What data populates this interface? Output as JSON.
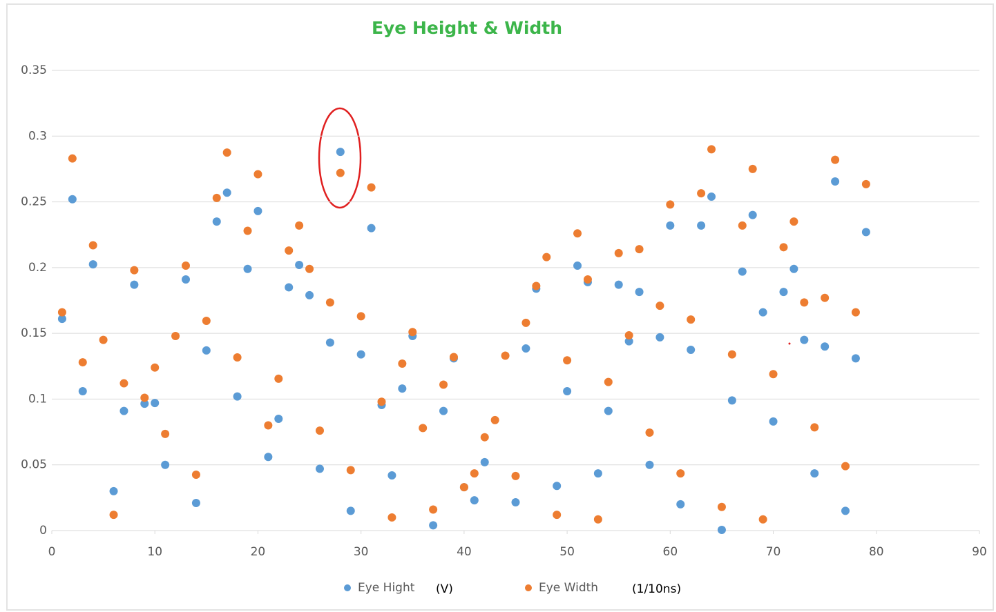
{
  "chart_data": {
    "type": "scatter",
    "title": "Eye Height & Width",
    "xlim": [
      0,
      90
    ],
    "xticks": [
      0,
      10,
      20,
      30,
      40,
      50,
      60,
      70,
      80,
      90
    ],
    "ylim": [
      0,
      0.35
    ],
    "yticks": [
      0,
      0.05,
      0.1,
      0.15,
      0.2,
      0.25,
      0.3,
      0.35
    ],
    "grid": true,
    "legend": "bottom",
    "series": [
      {
        "name": "Eye Hight",
        "unit": "(V)",
        "color": "#5b9bd5",
        "x": [
          1,
          2,
          3,
          4,
          6,
          7,
          8,
          9,
          10,
          11,
          13,
          14,
          15,
          16,
          17,
          18,
          19,
          20,
          21,
          22,
          23,
          24,
          25,
          26,
          27,
          28,
          29,
          30,
          31,
          32,
          33,
          34,
          35,
          37,
          38,
          39,
          40,
          41,
          42,
          45,
          46,
          47,
          49,
          50,
          51,
          52,
          53,
          54,
          55,
          56,
          57,
          58,
          59,
          60,
          61,
          62,
          63,
          64,
          65,
          66,
          67,
          68,
          69,
          70,
          71,
          72,
          73,
          74,
          75,
          76,
          77,
          78,
          79
        ],
        "values": [
          0.161,
          0.252,
          0.106,
          0.2025,
          0.03,
          0.091,
          0.187,
          0.0965,
          0.097,
          0.05,
          0.191,
          0.021,
          0.137,
          0.235,
          0.257,
          0.102,
          0.199,
          0.243,
          0.056,
          0.085,
          0.185,
          0.202,
          0.179,
          0.047,
          0.143,
          0.288,
          0.015,
          0.134,
          0.23,
          0.0955,
          0.042,
          0.108,
          0.148,
          0.004,
          0.091,
          0.131,
          0.033,
          0.023,
          0.052,
          0.0215,
          0.1385,
          0.184,
          0.034,
          0.106,
          0.2015,
          0.189,
          0.0435,
          0.091,
          0.187,
          0.144,
          0.1815,
          0.05,
          0.147,
          0.232,
          0.02,
          0.1375,
          0.232,
          0.254,
          0.0005,
          0.099,
          0.197,
          0.24,
          0.166,
          0.083,
          0.1815,
          0.199,
          0.145,
          0.0435,
          0.14,
          0.2655,
          0.015,
          0.131,
          0.227
        ]
      },
      {
        "name": "Eye Width",
        "unit": "(1/10ns)",
        "color": "#ed7d31",
        "x": [
          1,
          2,
          3,
          4,
          5,
          6,
          7,
          8,
          9,
          10,
          11,
          12,
          13,
          14,
          15,
          16,
          17,
          18,
          19,
          20,
          21,
          22,
          23,
          24,
          25,
          26,
          27,
          28,
          29,
          30,
          31,
          32,
          33,
          34,
          35,
          36,
          37,
          38,
          39,
          40,
          41,
          42,
          43,
          44,
          45,
          46,
          47,
          48,
          49,
          50,
          51,
          52,
          53,
          54,
          55,
          56,
          57,
          58,
          59,
          60,
          61,
          62,
          63,
          64,
          65,
          66,
          67,
          68,
          69,
          70,
          71,
          72,
          73,
          74,
          75,
          76,
          77,
          78,
          79
        ],
        "values": [
          0.166,
          0.283,
          0.128,
          0.217,
          0.145,
          0.012,
          0.112,
          0.198,
          0.101,
          0.124,
          0.0735,
          0.148,
          0.2015,
          0.0425,
          0.1595,
          0.253,
          0.2875,
          0.1317,
          0.228,
          0.271,
          0.08,
          0.1155,
          0.213,
          0.232,
          0.199,
          0.076,
          0.1735,
          0.272,
          0.046,
          0.163,
          0.261,
          0.098,
          0.01,
          0.127,
          0.151,
          0.078,
          0.016,
          0.111,
          0.132,
          0.033,
          0.0435,
          0.071,
          0.084,
          0.133,
          0.0415,
          0.158,
          0.186,
          0.208,
          0.012,
          0.1295,
          0.226,
          0.191,
          0.0085,
          0.113,
          0.211,
          0.1485,
          0.214,
          0.0745,
          0.171,
          0.248,
          0.0435,
          0.1605,
          0.2565,
          0.29,
          0.018,
          0.134,
          0.232,
          0.275,
          0.0085,
          0.119,
          0.2155,
          0.235,
          0.1735,
          0.0785,
          0.177,
          0.282,
          0.049,
          0.166,
          0.2635
        ]
      }
    ]
  }
}
